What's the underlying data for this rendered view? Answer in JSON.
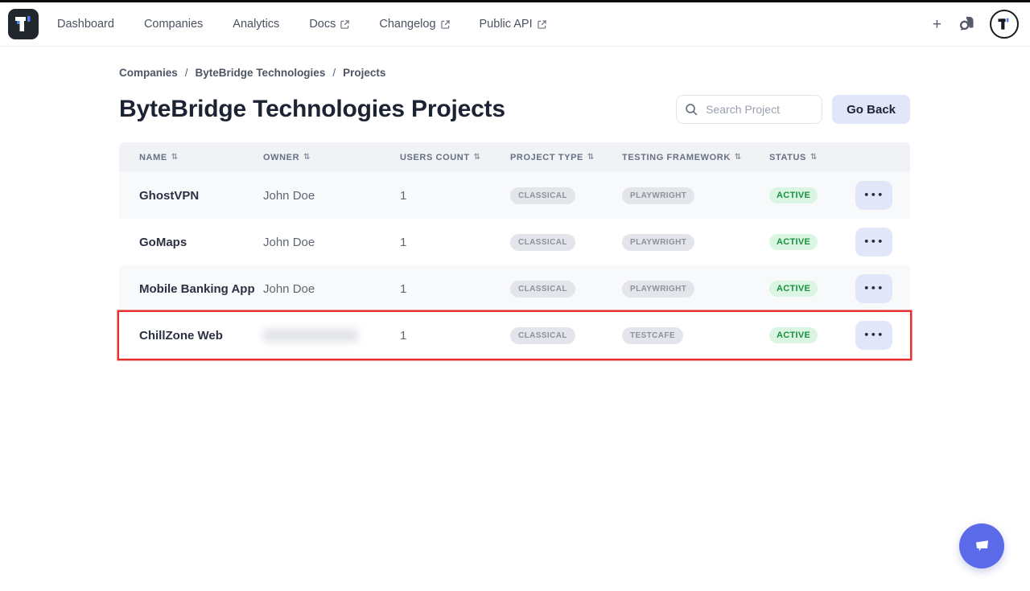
{
  "nav": {
    "brand": "Testomat logo",
    "items": [
      {
        "label": "Dashboard",
        "external": false
      },
      {
        "label": "Companies",
        "external": false
      },
      {
        "label": "Analytics",
        "external": false
      },
      {
        "label": "Docs",
        "external": true
      },
      {
        "label": "Changelog",
        "external": true
      },
      {
        "label": "Public API",
        "external": true
      }
    ],
    "plus_label": "+"
  },
  "breadcrumb": {
    "separator": "/",
    "items": [
      "Companies",
      "ByteBridge Technologies",
      "Projects"
    ]
  },
  "page": {
    "title": "ByteBridge Technologies Projects",
    "search_placeholder": "Search Project",
    "go_back_label": "Go Back"
  },
  "table": {
    "columns": [
      "NAME",
      "OWNER",
      "USERS COUNT",
      "PROJECT TYPE",
      "TESTING FRAMEWORK",
      "STATUS"
    ],
    "sort_glyph": "⇅",
    "actions_label": "•••",
    "rows": [
      {
        "name": "GhostVPN",
        "owner": "John Doe",
        "owner_redacted": false,
        "users_count": "1",
        "project_type": "CLASSICAL",
        "testing_framework": "PLAYWRIGHT",
        "status": "ACTIVE",
        "highlighted": false
      },
      {
        "name": "GoMaps",
        "owner": "John Doe",
        "owner_redacted": false,
        "users_count": "1",
        "project_type": "CLASSICAL",
        "testing_framework": "PLAYWRIGHT",
        "status": "ACTIVE",
        "highlighted": false
      },
      {
        "name": "Mobile Banking App",
        "owner": "John Doe",
        "owner_redacted": false,
        "users_count": "1",
        "project_type": "CLASSICAL",
        "testing_framework": "PLAYWRIGHT",
        "status": "ACTIVE",
        "highlighted": false
      },
      {
        "name": "ChillZone Web",
        "owner": "",
        "owner_redacted": true,
        "users_count": "1",
        "project_type": "CLASSICAL",
        "testing_framework": "TESTCAFE",
        "status": "ACTIVE",
        "highlighted": true
      }
    ]
  },
  "colors": {
    "accent_lavender": "#e2e6f9",
    "badge_gray_bg": "#e3e5ea",
    "badge_gray_text": "#8c929d",
    "status_active_bg": "#daf5e1",
    "status_active_text": "#17913f",
    "highlight_border": "#e8312f",
    "chat_bubble": "#5b6ae8"
  }
}
